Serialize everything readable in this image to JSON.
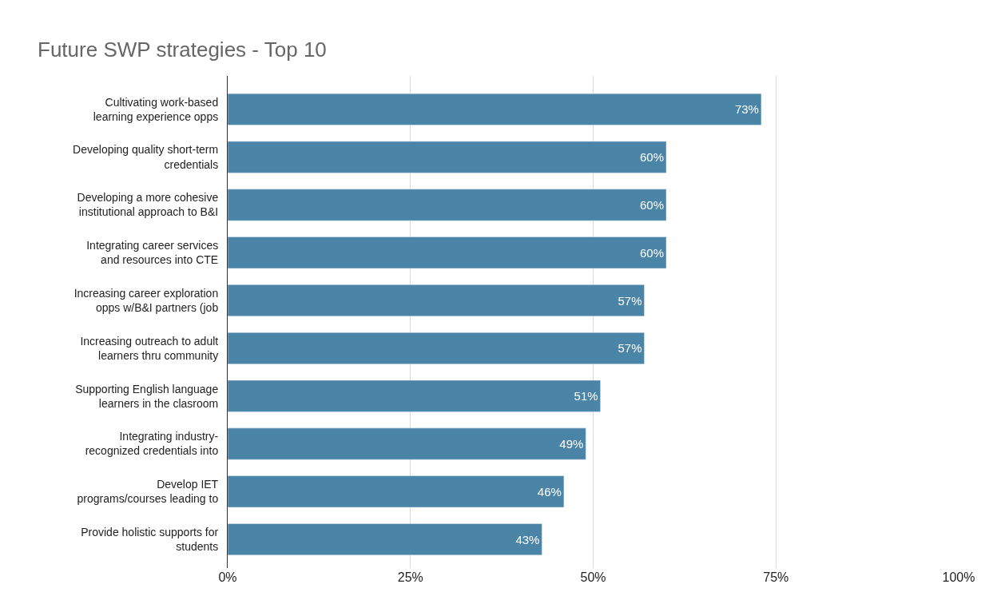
{
  "chart_data": {
    "type": "bar",
    "orientation": "horizontal",
    "title": "Future SWP strategies - Top 10",
    "categories": [
      "Cultivating work-based\nlearning experience opps",
      "Developing quality short-term\ncredentials",
      "Developing a more cohesive\ninstitutional approach to B&I",
      "Integrating career services\nand resources into CTE",
      "Increasing career exploration\nopps w/B&I partners (job",
      "Increasing outreach to adult\nlearners thru community",
      "Supporting English language\nlearners in the clasroom",
      "Integrating industry-\nrecognized credentials into",
      "Develop IET\nprograms/courses leading to",
      "Provide holistic supports for\nstudents"
    ],
    "values": [
      73,
      60,
      60,
      60,
      57,
      57,
      51,
      49,
      46,
      43
    ],
    "color": "#4a85a8",
    "xlim": [
      0,
      100
    ],
    "xticks": [
      {
        "value": 0,
        "label": "0%"
      },
      {
        "value": 25,
        "label": "25%"
      },
      {
        "value": 50,
        "label": "50%"
      },
      {
        "value": 75,
        "label": "75%"
      },
      {
        "value": 100,
        "label": "100%"
      }
    ],
    "value_labels": [
      "73%",
      "60%",
      "60%",
      "60%",
      "57%",
      "57%",
      "51%",
      "49%",
      "46%",
      "43%"
    ],
    "grid": "x",
    "legend": false
  }
}
